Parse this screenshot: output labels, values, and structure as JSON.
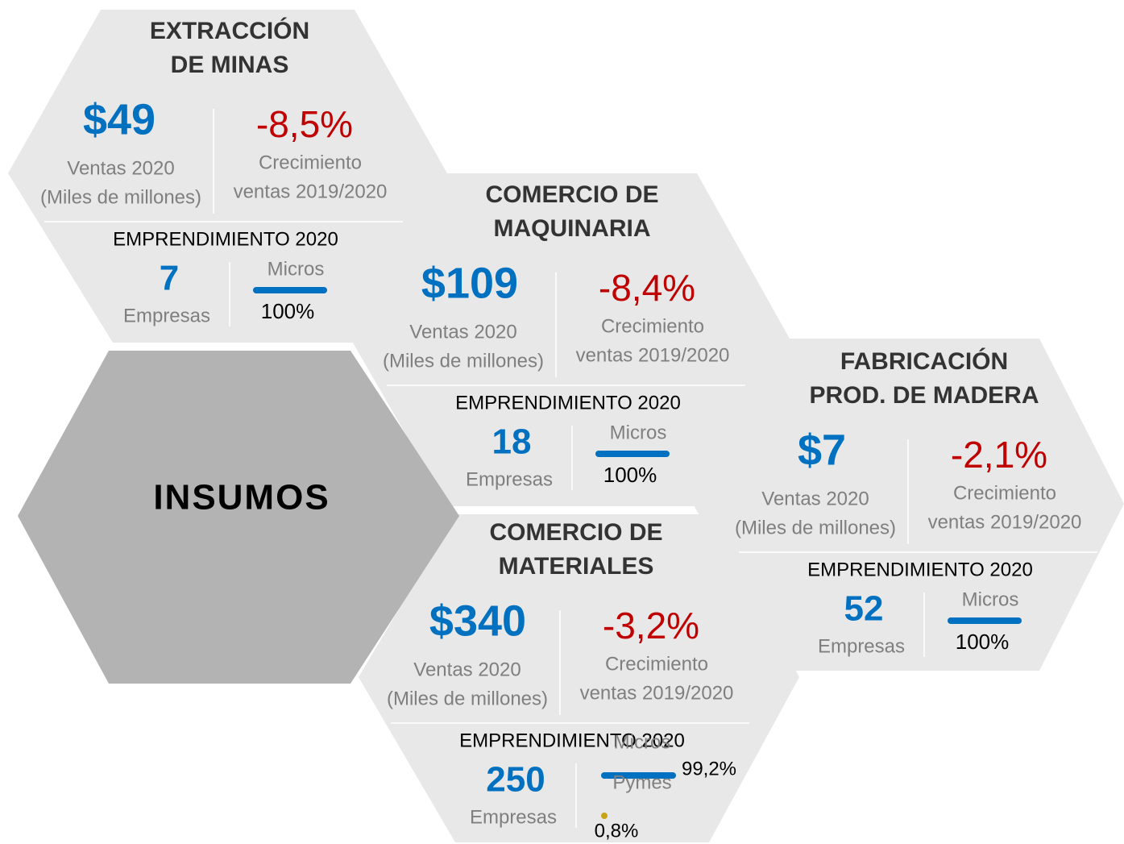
{
  "center": {
    "label": "INSUMOS"
  },
  "sectors": [
    {
      "title": [
        "EXTRACCIÓN",
        "DE MINAS"
      ],
      "sales": "$49",
      "sales_label": [
        "Ventas 2020",
        "(Miles de millones)"
      ],
      "growth": "-8,5%",
      "growth_label": [
        "Crecimiento",
        "ventas 2019/2020"
      ],
      "section": "EMPRENDIMIENTO 2020",
      "companies": "7",
      "companies_label": "Empresas",
      "segments": [
        {
          "name": "Micros",
          "share": "100%"
        }
      ]
    },
    {
      "title": [
        "COMERCIO DE",
        "MAQUINARIA"
      ],
      "sales": "$109",
      "sales_label": [
        "Ventas 2020",
        "(Miles de millones)"
      ],
      "growth": "-8,4%",
      "growth_label": [
        "Crecimiento",
        "ventas 2019/2020"
      ],
      "section": "EMPRENDIMIENTO 2020",
      "companies": "18",
      "companies_label": "Empresas",
      "segments": [
        {
          "name": "Micros",
          "share": "100%"
        }
      ]
    },
    {
      "title": [
        "COMERCIO DE",
        "MATERIALES"
      ],
      "sales": "$340",
      "sales_label": [
        "Ventas 2020",
        "(Miles de millones)"
      ],
      "growth": "-3,2%",
      "growth_label": [
        "Crecimiento",
        "ventas 2019/2020"
      ],
      "section": "EMPRENDIMIENTO 2020",
      "companies": "250",
      "companies_label": "Empresas",
      "segments": [
        {
          "name": "Micros",
          "share": "99,2%"
        },
        {
          "name": "Pymes",
          "share": "0,8%"
        }
      ]
    },
    {
      "title": [
        "FABRICACIÓN",
        "PROD. DE MADERA"
      ],
      "sales": "$7",
      "sales_label": [
        "Ventas 2020",
        "(Miles de millones)"
      ],
      "growth": "-2,1%",
      "growth_label": [
        "Crecimiento",
        "ventas 2019/2020"
      ],
      "section": "EMPRENDIMIENTO 2020",
      "companies": "52",
      "companies_label": "Empresas",
      "segments": [
        {
          "name": "Micros",
          "share": "100%"
        }
      ]
    }
  ]
}
